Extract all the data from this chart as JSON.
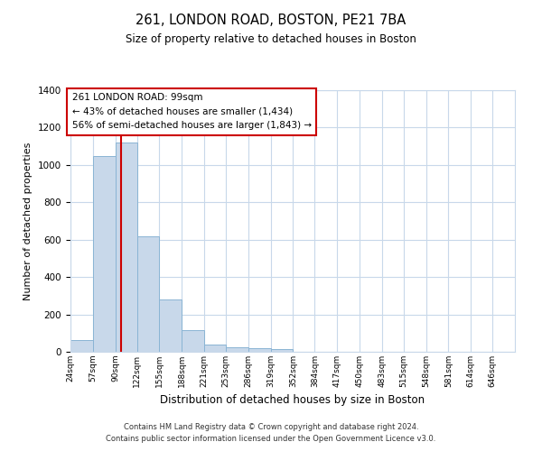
{
  "title": "261, LONDON ROAD, BOSTON, PE21 7BA",
  "subtitle": "Size of property relative to detached houses in Boston",
  "xlabel": "Distribution of detached houses by size in Boston",
  "ylabel": "Number of detached properties",
  "bar_color": "#c8d8ea",
  "bar_edge_color": "#8ab4d4",
  "background_color": "#ffffff",
  "grid_color": "#c8d8ea",
  "red_line_x": 99,
  "annotation_title": "261 LONDON ROAD: 99sqm",
  "annotation_line1": "← 43% of detached houses are smaller (1,434)",
  "annotation_line2": "56% of semi-detached houses are larger (1,843) →",
  "bin_edges": [
    24,
    57,
    90,
    122,
    155,
    188,
    221,
    253,
    286,
    319,
    352,
    384,
    417,
    450,
    483,
    515,
    548,
    581,
    614,
    646,
    679
  ],
  "bin_counts": [
    65,
    1050,
    1120,
    620,
    280,
    115,
    40,
    25,
    20,
    15,
    0,
    0,
    0,
    0,
    0,
    0,
    0,
    0,
    0,
    0
  ],
  "ylim": [
    0,
    1400
  ],
  "yticks": [
    0,
    200,
    400,
    600,
    800,
    1000,
    1200,
    1400
  ],
  "footer_line1": "Contains HM Land Registry data © Crown copyright and database right 2024.",
  "footer_line2": "Contains public sector information licensed under the Open Government Licence v3.0."
}
